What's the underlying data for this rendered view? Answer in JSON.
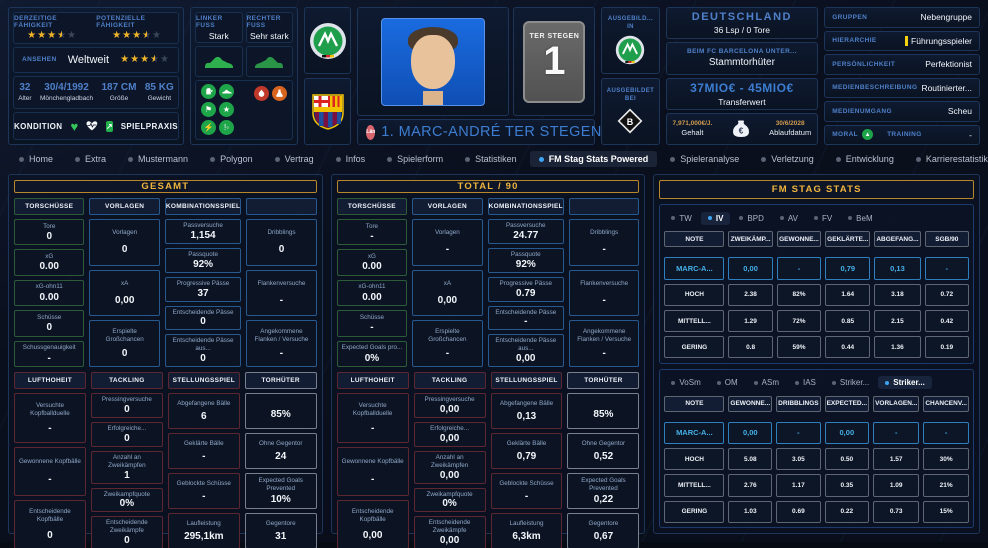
{
  "header": {
    "ability": {
      "current_label": "DERZEITIGE FÄHIGKEIT",
      "potential_label": "POTENZIELLE FÄHIGKEIT",
      "current_stars": 3.5,
      "potential_stars": 3.5
    },
    "reputation": {
      "label": "ANSEHEN",
      "value": "Weltweit",
      "stars": 3.5
    },
    "bio": [
      {
        "value": "32",
        "label": "Alter"
      },
      {
        "value": "30/4/1992",
        "label": "Mönchengladbach"
      },
      {
        "value": "187 CM",
        "label": "Größe"
      },
      {
        "value": "85 KG",
        "label": "Gewicht"
      }
    ],
    "condition": {
      "left_label": "KONDITION",
      "right_label": "SPIELPRAXIS"
    },
    "feet": {
      "left_label": "LINKER FUSS",
      "left_value": "Stark",
      "right_label": "RECHTER FUSS",
      "right_value": "Sehr stark"
    },
    "jersey": {
      "name": "TER STEGEN",
      "number": "1"
    },
    "name_badge": "Län",
    "player_name": "1. MARC-ANDRÉ TER STEGEN",
    "trained": {
      "in_label": "AUSGEBILD... IN",
      "at_label": "AUSGEBILDET BEI"
    },
    "nation": {
      "name": "DEUTSCHLAND",
      "caps": "36 Lsp / 0 Tore"
    },
    "club_status": {
      "label": "BEIM FC BARCELONA UNTER...",
      "value": "Stammtorhüter"
    },
    "transfer": {
      "value": "37MIO€ - 45MIO€",
      "label": "Transferwert"
    },
    "contract": {
      "wage": "7,971,000€/J.",
      "wage_label": "Gehalt",
      "expiry": "30/6/2028",
      "expiry_label": "Ablaufdatum"
    },
    "attributes": [
      {
        "label": "GRUPPEN",
        "value": "Nebengruppe"
      },
      {
        "label": "HIERARCHIE",
        "value": "Führungsspieler"
      },
      {
        "label": "PERSÖNLICHKEIT",
        "value": "Perfektionist"
      },
      {
        "label": "MEDIENBESCHREIBUNG",
        "value": "Routinierter..."
      },
      {
        "label": "MEDIENUMGANG",
        "value": "Scheu"
      }
    ],
    "moral_training": {
      "left_label": "MORAL",
      "right_label": "TRAINING",
      "right_value": "-"
    }
  },
  "nav": {
    "items": [
      {
        "label": "Home",
        "active": false
      },
      {
        "label": "Extra",
        "active": false
      },
      {
        "label": "Mustermann",
        "active": false
      },
      {
        "label": "Polygon",
        "active": false
      },
      {
        "label": "Vertrag",
        "active": false
      },
      {
        "label": "Infos",
        "active": false
      },
      {
        "label": "Spielerform",
        "active": false
      },
      {
        "label": "Statistiken",
        "active": false
      },
      {
        "label": "FM Stag Stats Powered",
        "active": true
      },
      {
        "label": "Spieleranalyse",
        "active": false
      },
      {
        "label": "Verletzung",
        "active": false
      },
      {
        "label": "Entwicklung",
        "active": false
      },
      {
        "label": "Karrierestatistik",
        "active": false
      },
      {
        "label": "Timeline",
        "active": false
      }
    ]
  },
  "stats_panels": [
    {
      "title": "GESAMT",
      "top": [
        {
          "header": "TORSCHÜSSE",
          "color": "green",
          "cells": [
            {
              "label": "Tore",
              "value": "0"
            },
            {
              "label": "xG",
              "value": "0.00"
            },
            {
              "label": "xG-ohn11",
              "value": "0.00"
            },
            {
              "label": "Schüsse",
              "value": "0"
            },
            {
              "label": "Schussgenauigkeit",
              "value": "-"
            }
          ]
        },
        {
          "header": "VORLAGEN",
          "color": "blue",
          "cells": [
            {
              "label": "Vorlagen",
              "value": "0"
            },
            {
              "label": "xA",
              "value": "0,00"
            },
            {
              "label": "Erspielte Großchancen",
              "value": "0"
            }
          ]
        },
        {
          "header": "KOMBINATIONSSPIEL",
          "color": "blue",
          "cells": [
            {
              "label": "Passversuche",
              "value": "1,154"
            },
            {
              "label": "Passquote",
              "value": "92%"
            },
            {
              "label": "Progressive Pässe",
              "value": "37"
            },
            {
              "label": "Entscheidende Pässe",
              "value": "0"
            },
            {
              "label": "Entscheidende Pässe aus...",
              "value": "0"
            }
          ]
        },
        {
          "header": "",
          "color": "blue",
          "cells": [
            {
              "label": "Dribblings",
              "value": "0"
            },
            {
              "label": "Flankenversuche",
              "value": "-"
            },
            {
              "label": "Angekommene Flanken / Versuche",
              "value": "-"
            }
          ]
        }
      ],
      "bottom": [
        {
          "header": "LUFTHOHEIT",
          "color": "red",
          "cells": [
            {
              "label": "Versuchte Kopfballduelle",
              "value": "-"
            },
            {
              "label": "Gewonnene Kopfbälle",
              "value": "-"
            },
            {
              "label": "Entscheidende Kopfbälle",
              "value": "0"
            }
          ]
        },
        {
          "header": "TACKLING",
          "color": "red",
          "cells": [
            {
              "label": "Pressingversuche",
              "value": "0"
            },
            {
              "label": "Erfolgreiche...",
              "value": "0"
            },
            {
              "label": "Anzahl an Zweikämpfen",
              "value": "1"
            },
            {
              "label": "Zweikampfquote",
              "value": "0%"
            },
            {
              "label": "Entscheidende Zweikämpfe",
              "value": "0"
            }
          ]
        },
        {
          "header": "STELLUNGSSPIEL",
          "color": "red",
          "cells": [
            {
              "label": "Abgefangene Bälle",
              "value": "6"
            },
            {
              "label": "Geklärte Bälle",
              "value": "-"
            },
            {
              "label": "Geblockte Schüsse",
              "value": "-"
            },
            {
              "label": "Laufleistung",
              "value": "295,1km"
            }
          ]
        },
        {
          "header": "TORHÜTER",
          "color": "gray",
          "cells": [
            {
              "label": "",
              "value": "85%"
            },
            {
              "label": "Ohne Gegentor",
              "value": "24"
            },
            {
              "label": "Expected Goals Prevented",
              "value": "10%"
            },
            {
              "label": "Gegentore",
              "value": "31"
            }
          ]
        }
      ]
    },
    {
      "title": "TOTAL / 90",
      "top": [
        {
          "header": "TORSCHÜSSE",
          "color": "green",
          "cells": [
            {
              "label": "Tore",
              "value": "-"
            },
            {
              "label": "xG",
              "value": "0.00"
            },
            {
              "label": "xG-ohn11",
              "value": "0.00"
            },
            {
              "label": "Schüsse",
              "value": "-"
            },
            {
              "label": "Expected Goals pro...",
              "value": "0%"
            }
          ]
        },
        {
          "header": "VORLAGEN",
          "color": "blue",
          "cells": [
            {
              "label": "Vorlagen",
              "value": "-"
            },
            {
              "label": "xA",
              "value": "0,00"
            },
            {
              "label": "Erspielte Großchancen",
              "value": "-"
            }
          ]
        },
        {
          "header": "KOMBINATIONSSPIEL",
          "color": "blue",
          "cells": [
            {
              "label": "Passversuche",
              "value": "24.77"
            },
            {
              "label": "Passquote",
              "value": "92%"
            },
            {
              "label": "Progressive Pässe",
              "value": "0.79"
            },
            {
              "label": "Entscheidende Pässe",
              "value": "-"
            },
            {
              "label": "Entscheidende Pässe aus...",
              "value": "0,00"
            }
          ]
        },
        {
          "header": "",
          "color": "blue",
          "cells": [
            {
              "label": "Dribblings",
              "value": "-"
            },
            {
              "label": "Flankenversuche",
              "value": "-"
            },
            {
              "label": "Angekommene Flanken / Versuche",
              "value": "-"
            }
          ]
        }
      ],
      "bottom": [
        {
          "header": "LUFTHOHEIT",
          "color": "red",
          "cells": [
            {
              "label": "Versuchte Kopfballduelle",
              "value": "-"
            },
            {
              "label": "Gewonnene Kopfbälle",
              "value": "-"
            },
            {
              "label": "Entscheidende Kopfbälle",
              "value": "0,00"
            }
          ]
        },
        {
          "header": "TACKLING",
          "color": "red",
          "cells": [
            {
              "label": "Pressingversuche",
              "value": "0,00"
            },
            {
              "label": "Erfolgreiche...",
              "value": "0,00"
            },
            {
              "label": "Anzahl an Zweikämpfen",
              "value": "0,00"
            },
            {
              "label": "Zweikampfquote",
              "value": "0%"
            },
            {
              "label": "Entscheidende Zweikämpfe",
              "value": "0,00"
            }
          ]
        },
        {
          "header": "STELLUNGSSPIEL",
          "color": "red",
          "cells": [
            {
              "label": "Abgefangene Bälle",
              "value": "0,13"
            },
            {
              "label": "Geklärte Bälle",
              "value": "0,79"
            },
            {
              "label": "Geblockte Schüsse",
              "value": "-"
            },
            {
              "label": "Laufleistung",
              "value": "6,3km"
            }
          ]
        },
        {
          "header": "TORHÜTER",
          "color": "gray",
          "cells": [
            {
              "label": "",
              "value": "85%"
            },
            {
              "label": "Ohne Gegentor",
              "value": "0,52"
            },
            {
              "label": "Expected Goals Prevented",
              "value": "0,22"
            },
            {
              "label": "Gegentore",
              "value": "0,67"
            }
          ]
        }
      ]
    }
  ],
  "fmstag": {
    "title": "FM STAG STATS",
    "tables": [
      {
        "tabs": [
          {
            "label": "TW",
            "active": false
          },
          {
            "label": "IV",
            "active": true
          },
          {
            "label": "BPD",
            "active": false
          },
          {
            "label": "AV",
            "active": false
          },
          {
            "label": "FV",
            "active": false
          },
          {
            "label": "BeM",
            "active": false
          }
        ],
        "headers": [
          "NOTE",
          "ZWEIKÄMP...",
          "GEWONNE...",
          "GEKLÄRTE...",
          "ABGEFANG...",
          "SGB/90"
        ],
        "rows": [
          {
            "name": "MARC-A...",
            "active": true,
            "values": [
              "0,00",
              "-",
              "0,79",
              "0,13",
              "-"
            ]
          },
          {
            "name": "HOCH",
            "active": false,
            "values": [
              "2.38",
              "82%",
              "1.64",
              "3.18",
              "0.72"
            ]
          },
          {
            "name": "MITTELL...",
            "active": false,
            "values": [
              "1.29",
              "72%",
              "0.85",
              "2.15",
              "0.42"
            ]
          },
          {
            "name": "GERING",
            "active": false,
            "values": [
              "0.8",
              "59%",
              "0.44",
              "1.36",
              "0.19"
            ]
          }
        ]
      },
      {
        "tabs": [
          {
            "label": "VoSm",
            "active": false
          },
          {
            "label": "OM",
            "active": false
          },
          {
            "label": "ASm",
            "active": false
          },
          {
            "label": "IAS",
            "active": false
          },
          {
            "label": "Striker...",
            "active": false
          },
          {
            "label": "Striker...",
            "active": true
          }
        ],
        "headers": [
          "NOTE",
          "GEWONNE...",
          "DRIBBLINGS",
          "EXPECTED...",
          "VORLAGEN...",
          "CHANCENV..."
        ],
        "rows": [
          {
            "name": "MARC-A...",
            "active": true,
            "values": [
              "0,00",
              "-",
              "0,00",
              "-",
              "-"
            ]
          },
          {
            "name": "HOCH",
            "active": false,
            "values": [
              "5.08",
              "3.05",
              "0.50",
              "1.57",
              "30%"
            ]
          },
          {
            "name": "MITTELL...",
            "active": false,
            "values": [
              "2.76",
              "1.17",
              "0.35",
              "1.09",
              "21%"
            ]
          },
          {
            "name": "GERING",
            "active": false,
            "values": [
              "1.03",
              "0.69",
              "0.22",
              "0.73",
              "15%"
            ]
          }
        ]
      }
    ]
  },
  "colors": {
    "accent_gold": "#f0b53e",
    "accent_blue": "#3da5f4",
    "active_cyan": "#44b0e8",
    "star_gold": "#f0b429"
  }
}
